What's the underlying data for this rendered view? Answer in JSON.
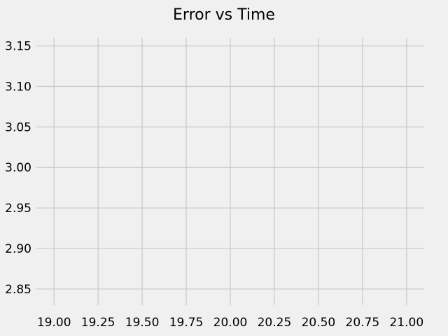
{
  "chart_data": {
    "type": "line",
    "title": "Error vs Time",
    "xlabel": "",
    "ylabel": "",
    "series": [],
    "xlim": [
      18.9,
      21.1
    ],
    "ylim": [
      2.83,
      3.16
    ],
    "x_ticks": [
      19.0,
      19.25,
      19.5,
      19.75,
      20.0,
      20.25,
      20.5,
      20.75,
      21.0
    ],
    "x_tick_labels": [
      "19.00",
      "19.25",
      "19.50",
      "19.75",
      "20.00",
      "20.25",
      "20.50",
      "20.75",
      "21.00"
    ],
    "y_ticks": [
      2.85,
      2.9,
      2.95,
      3.0,
      3.05,
      3.1,
      3.15
    ],
    "y_tick_labels": [
      "2.85",
      "2.90",
      "2.95",
      "3.00",
      "3.05",
      "3.10",
      "3.15"
    ],
    "grid": true,
    "colors": {
      "background": "#f0f0f0",
      "grid": "#cbcbcb",
      "text": "#000000"
    }
  }
}
